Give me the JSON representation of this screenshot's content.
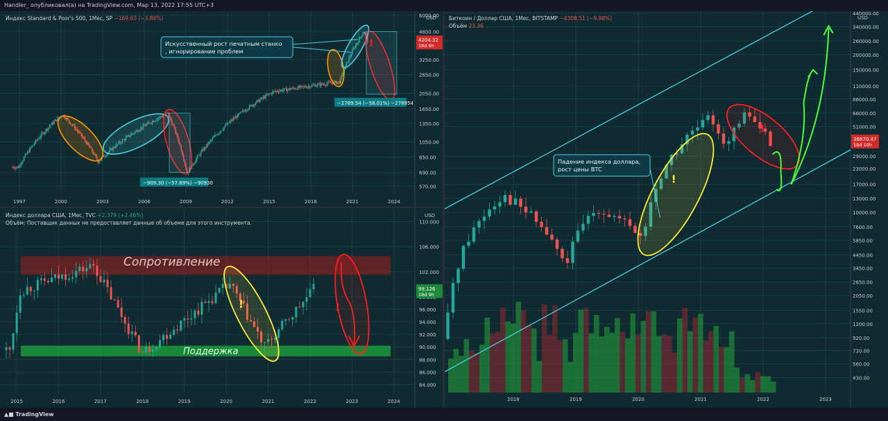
{
  "header": {
    "text": "Handler_ опубликовал(а) на TradingView.com, Мар 13, 2022 17:55 UTC+3"
  },
  "footer": {
    "brand": "TradingView"
  },
  "colors": {
    "bg": "#0f2a30",
    "up": "#26a69a",
    "down": "#ef5350",
    "cyan": "#4dd0e1",
    "yellow": "#ffeb3b",
    "orange": "#ff9800",
    "red": "#ff1f1f",
    "green_arrow": "#4cff3a"
  },
  "chart_data": [
    {
      "type": "candlestick",
      "title_line": "Индекс Standard & Poor's 500, 1Мес, SP",
      "change": "−169.63 (−3.88%)",
      "currency": "USD",
      "y_ticks": [
        "6000.00",
        "4800.00",
        "3250.00",
        "2650.00",
        "2050.00",
        "1650.00",
        "1350.00",
        "1050.00",
        "850.00",
        "690.00",
        "570.00"
      ],
      "x_ticks": [
        "1997",
        "2000",
        "2003",
        "2006",
        "2009",
        "2012",
        "2015",
        "2018",
        "2021",
        "2024"
      ],
      "last_price": "4204.32",
      "last_countdown": "18d 6h",
      "key_points": [
        {
          "date": "1997-01",
          "value": 740
        },
        {
          "date": "2000-03",
          "value": 1530
        },
        {
          "date": "2002-10",
          "value": 800
        },
        {
          "date": "2007-10",
          "value": 1560
        },
        {
          "date": "2009-03",
          "value": 680
        },
        {
          "date": "2015-06",
          "value": 2100
        },
        {
          "date": "2020-03",
          "value": 2400
        },
        {
          "date": "2021-12",
          "value": 4800
        },
        {
          "date": "2022-03",
          "value": 4204
        }
      ],
      "annotations": [
        {
          "text": "Искусственный рост печатным станком, игнорирование проблем"
        },
        {
          "measure": "−909.30 (−57.69%) −90930"
        },
        {
          "measure": "−2789.54 (−58.01%) −278954"
        }
      ]
    },
    {
      "type": "candlestick",
      "title_line": "Индекс доллара США, 1Мес, TVC",
      "change": "+2.379 (+2.46%)",
      "volume_note": "Объём: Поставщик данных не предоставляет данные об объеме для этого инструмента.",
      "currency": "USD",
      "y_ticks": [
        "110.000",
        "106.000",
        "102.000",
        "98.000",
        "96.000",
        "94.000",
        "92.000",
        "90.000",
        "88.000",
        "86.000",
        "84.000"
      ],
      "x_ticks": [
        "2015",
        "2016",
        "2017",
        "2018",
        "2019",
        "2020",
        "2021",
        "2022",
        "2023",
        "2024"
      ],
      "last_price": "99.126",
      "last_countdown": "18d 9h",
      "key_points": [
        {
          "date": "2014-12",
          "value": 89.5
        },
        {
          "date": "2015-03",
          "value": 99
        },
        {
          "date": "2016-12",
          "value": 103
        },
        {
          "date": "2018-02",
          "value": 89
        },
        {
          "date": "2020-03",
          "value": 100
        },
        {
          "date": "2021-01",
          "value": 90
        },
        {
          "date": "2022-03",
          "value": 99.126
        }
      ],
      "zones": [
        {
          "label": "Сопротивление",
          "from": 101.5,
          "to": 104.5
        },
        {
          "label": "Поддержка",
          "from": 88.5,
          "to": 90.2
        }
      ]
    },
    {
      "type": "candlestick",
      "title_line": "Биткоин / Доллар США, 1Мес, BITSTAMP",
      "change": "−4308.51 (−9.98%)",
      "volume_label": "Объём",
      "volume_value": "23.36",
      "currency": "USD",
      "y_ticks": [
        "440000.00",
        "340000.00",
        "260000.00",
        "200000.00",
        "150000.00",
        "110000.00",
        "86000.00",
        "66000.00",
        "51000.00",
        "29000.00",
        "23000.00",
        "17000.00",
        "13000.00",
        "10000.00",
        "7600.00",
        "5850.00",
        "4450.00",
        "3450.00",
        "2650.00",
        "2050.00",
        "1550.00",
        "1200.00",
        "920.00",
        "720.00",
        "560.00",
        "430.00"
      ],
      "x_ticks": [
        "2018",
        "2019",
        "2020",
        "2021",
        "2022",
        "2023"
      ],
      "last_price": "38870.47",
      "last_countdown": "18d 10h",
      "key_points": [
        {
          "date": "2017-01",
          "value": 900
        },
        {
          "date": "2017-12",
          "value": 14000
        },
        {
          "date": "2018-12",
          "value": 3500
        },
        {
          "date": "2019-06",
          "value": 11000
        },
        {
          "date": "2020-03",
          "value": 6000
        },
        {
          "date": "2021-04",
          "value": 60000
        },
        {
          "date": "2021-07",
          "value": 35000
        },
        {
          "date": "2021-11",
          "value": 66000
        },
        {
          "date": "2022-03",
          "value": 38870
        }
      ],
      "annotations": [
        {
          "text": "Падение индекса доллара, рост цены BTC"
        }
      ]
    }
  ]
}
